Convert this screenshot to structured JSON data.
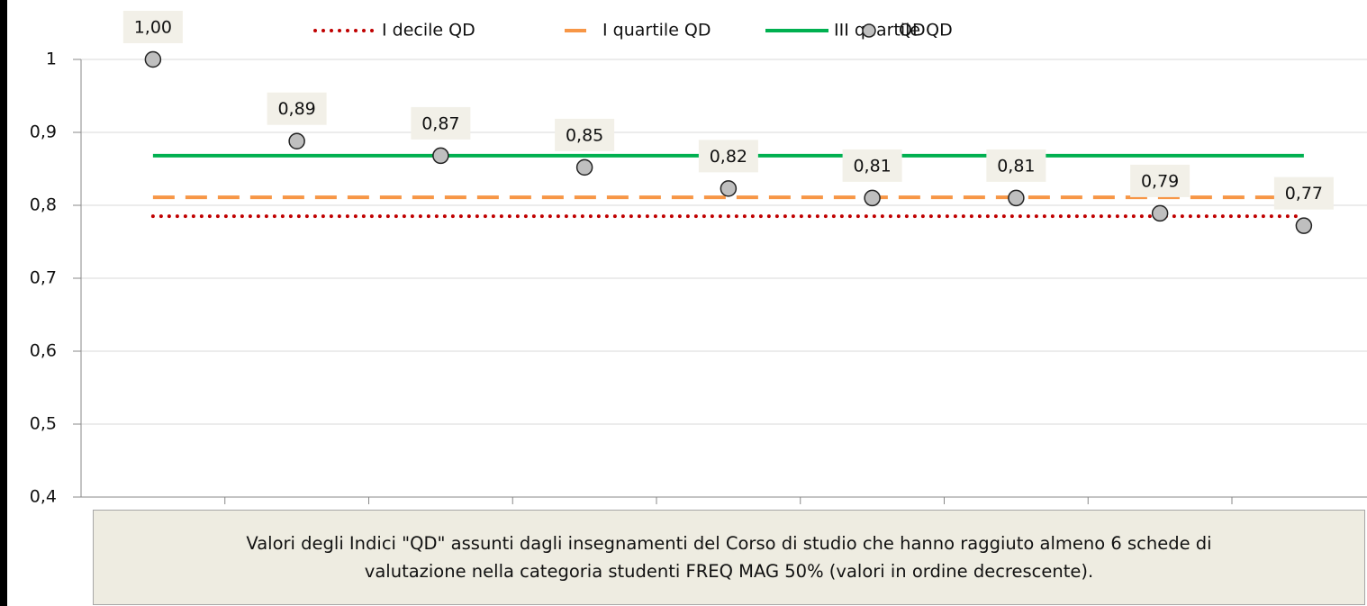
{
  "chart_data": {
    "type": "line",
    "categories": [
      null,
      null,
      null,
      null,
      null,
      null,
      null,
      null,
      null
    ],
    "ylim": [
      0.4,
      1
    ],
    "yticks": [
      {
        "value": 0.4,
        "label": "0,4"
      },
      {
        "value": 0.5,
        "label": "0,5"
      },
      {
        "value": 0.6,
        "label": "0,6"
      },
      {
        "value": 0.7,
        "label": "0,7"
      },
      {
        "value": 0.8,
        "label": "0,8"
      },
      {
        "value": 0.9,
        "label": "0,9"
      },
      1
    ],
    "grid": true,
    "legend": "top",
    "series": [
      {
        "name": "I decile QD",
        "color": "#c00000",
        "style": "dotted",
        "values": [
          0.785,
          0.785,
          0.785,
          0.785,
          0.785,
          0.785,
          0.785,
          0.785,
          0.785
        ]
      },
      {
        "name": "I quartile QD",
        "color": "#f79646",
        "style": "dashed",
        "values": [
          0.811,
          0.811,
          0.811,
          0.811,
          0.811,
          0.811,
          0.811,
          0.811,
          0.811
        ]
      },
      {
        "name": "III quartile QD",
        "color": "#00b050",
        "style": "solid",
        "values": [
          0.868,
          0.868,
          0.868,
          0.868,
          0.868,
          0.868,
          0.868,
          0.868,
          0.868
        ]
      },
      {
        "name": "QD",
        "color": "#bfbfbf",
        "style": "marker",
        "values": [
          1.0,
          0.888,
          0.868,
          0.852,
          0.823,
          0.81,
          0.81,
          0.789,
          0.772
        ],
        "value_labels": [
          "1,00",
          "0,89",
          "0,87",
          "0,85",
          "0,82",
          "0,81",
          "0,81",
          "0,79",
          "0,77"
        ]
      }
    ],
    "caption": "Valori degli Indici \"QD\" assunti dagli insegnamenti del Corso di studio che hanno raggiuto almeno 6 schede di valutazione nella categoria studenti FREQ MAG 50% (valori in ordine decrescente)."
  }
}
